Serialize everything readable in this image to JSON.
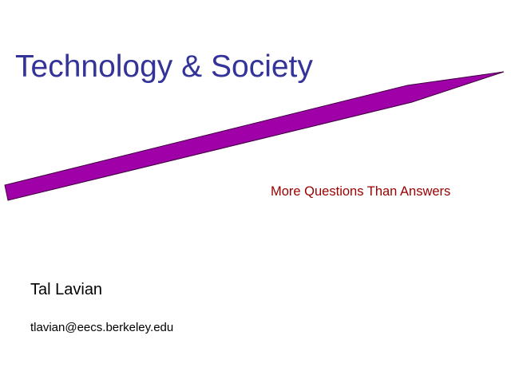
{
  "slide": {
    "title": "Technology & Society",
    "subtitle": "More Questions Than Answers",
    "author": "Tal Lavian",
    "email": "tlavian@eecs.berkeley.edu"
  },
  "colors": {
    "title": "#333399",
    "subtitle": "#990000",
    "arrow_fill": "#A000A8",
    "arrow_stroke": "#400040"
  }
}
